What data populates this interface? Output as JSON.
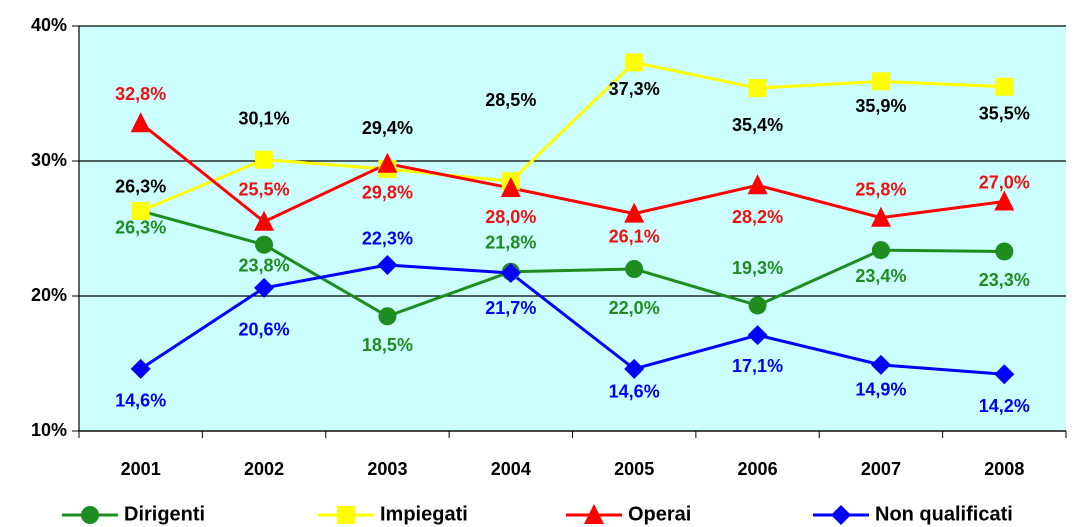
{
  "chart_data": {
    "type": "line",
    "categories": [
      "2001",
      "2002",
      "2003",
      "2004",
      "2005",
      "2006",
      "2007",
      "2008"
    ],
    "series": [
      {
        "name": "Dirigenti",
        "color": "#1e8c1e",
        "label_color": "#1e8c1e",
        "marker": "circle",
        "values": [
          26.3,
          23.8,
          18.5,
          21.8,
          22.0,
          19.3,
          23.4,
          23.3
        ],
        "value_labels": [
          "26,3%",
          "23,8%",
          "18,5%",
          "21,8%",
          "22,0%",
          "19,3%",
          "23,4%",
          "23,3%"
        ]
      },
      {
        "name": "Impiegati",
        "color": "#ffff00",
        "label_color": "#000000",
        "marker": "square",
        "values": [
          26.3,
          30.1,
          29.4,
          28.5,
          37.3,
          35.4,
          35.9,
          35.5
        ],
        "value_labels": [
          "26,3%",
          "30,1%",
          "29,4%",
          "28,5%",
          "37,3%",
          "35,4%",
          "35,9%",
          "35,5%"
        ]
      },
      {
        "name": "Operai",
        "color": "#ff0000",
        "label_color": "#ee1111",
        "marker": "triangle",
        "values": [
          32.8,
          25.5,
          29.8,
          28.0,
          26.1,
          28.2,
          25.8,
          27.0
        ],
        "value_labels": [
          "32,8%",
          "25,5%",
          "29,8%",
          "28,0%",
          "26,1%",
          "28,2%",
          "25,8%",
          "27,0%"
        ]
      },
      {
        "name": "Non qualificati",
        "color": "#0000ff",
        "label_color": "#0000ee",
        "marker": "diamond",
        "values": [
          14.6,
          20.6,
          22.3,
          21.7,
          14.6,
          17.1,
          14.9,
          14.2
        ],
        "value_labels": [
          "14,6%",
          "20,6%",
          "22,3%",
          "21,7%",
          "14,6%",
          "17,1%",
          "14,9%",
          "14,2%"
        ]
      }
    ],
    "ylim": [
      10,
      40
    ],
    "yticks": [
      {
        "value": 10,
        "label": "10%"
      },
      {
        "value": 20,
        "label": "20%"
      },
      {
        "value": 30,
        "label": "30%"
      },
      {
        "value": 40,
        "label": "40%"
      }
    ],
    "grid": true,
    "plot_background": "#ccffff",
    "legend": "bottom"
  }
}
